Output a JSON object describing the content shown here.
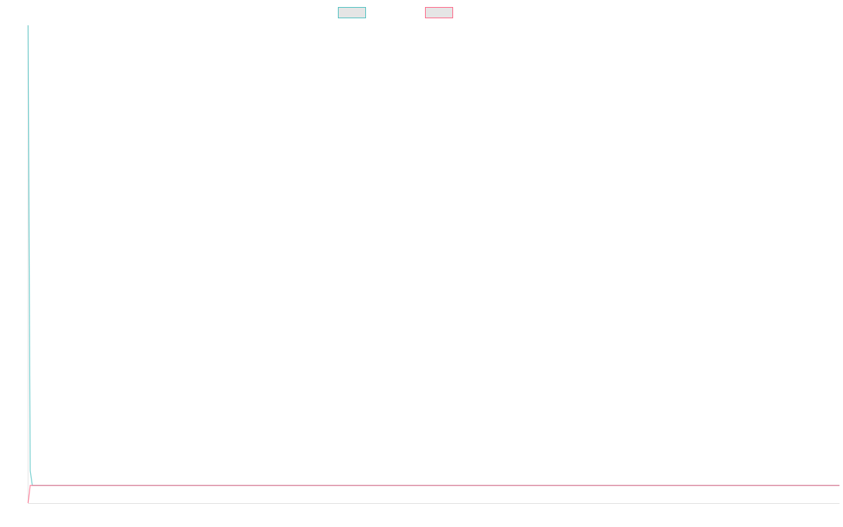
{
  "chart_data": {
    "type": "line",
    "title": "",
    "xlabel": "",
    "ylabel": "",
    "xlim": [
      0,
      385
    ],
    "ylim": [
      0,
      100
    ],
    "grid": false,
    "legend": "top",
    "series": [
      {
        "label": "",
        "color": "#4bc0c0",
        "points": [
          [
            0,
            100
          ],
          [
            1,
            6.8
          ],
          [
            2,
            3.7
          ],
          [
            385,
            3.7
          ]
        ]
      },
      {
        "label": "",
        "color": "#ff6384",
        "points": [
          [
            0,
            0
          ],
          [
            1,
            3.7
          ],
          [
            385,
            3.7
          ]
        ]
      }
    ],
    "legend_fill": "#e5e5e5",
    "axis_color": "#e0e0e0"
  }
}
